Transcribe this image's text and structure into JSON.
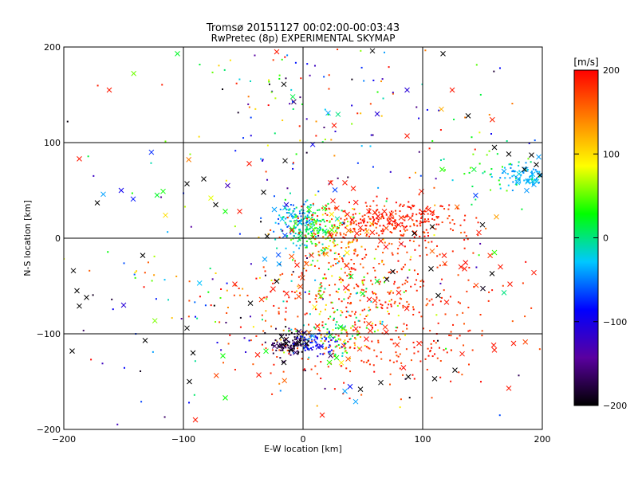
{
  "chart_data": {
    "type": "scatter",
    "title": "Tromsø 20151127 00:02:00-00:03:43",
    "subtitle": "RwPretec (8p) EXPERIMENTAL SKYMAP",
    "xlabel": "E-W location [km]",
    "ylabel": "N-S location [km]",
    "xlim": [
      -200,
      200
    ],
    "ylim": [
      -200,
      200
    ],
    "xticks": [
      -200,
      -100,
      0,
      100,
      200
    ],
    "yticks": [
      -200,
      -100,
      0,
      100,
      200
    ],
    "xtick_labels": [
      "−200",
      "−100",
      "0",
      "100",
      "200"
    ],
    "ytick_labels": [
      "−200",
      "−100",
      "0",
      "100",
      "200"
    ],
    "grid": true,
    "colorbar": {
      "label": "[m/s]",
      "range": [
        -200,
        200
      ],
      "ticks": [
        200,
        100,
        0,
        -100,
        -200
      ],
      "tick_labels": [
        "200",
        "100",
        "0",
        "−100",
        "−200"
      ],
      "colormap": [
        "#000000",
        "#5a00a0",
        "#0000ff",
        "#00c8ff",
        "#00ff00",
        "#ffff00",
        "#ff8000",
        "#ff0000"
      ]
    },
    "markers": {
      "x": "cross markers",
      "dot": "small dot markers"
    },
    "points": [
      {
        "x": -162,
        "y": 155,
        "v": 190,
        "m": "x"
      },
      {
        "x": -187,
        "y": 83,
        "v": 190,
        "m": "x"
      },
      {
        "x": -167,
        "y": 46,
        "v": -40,
        "m": "x"
      },
      {
        "x": -152,
        "y": 50,
        "v": -95,
        "m": "x"
      },
      {
        "x": -142,
        "y": 41,
        "v": -80,
        "m": "x"
      },
      {
        "x": -172,
        "y": 37,
        "v": -200,
        "m": "x"
      },
      {
        "x": -122,
        "y": 45,
        "v": 20,
        "m": "x"
      },
      {
        "x": -117,
        "y": 49,
        "v": 30,
        "m": "x"
      },
      {
        "x": -115,
        "y": 24,
        "v": 100,
        "m": "x"
      },
      {
        "x": -134,
        "y": -18,
        "v": -200,
        "m": "x"
      },
      {
        "x": -192,
        "y": -34,
        "v": -200,
        "m": "x"
      },
      {
        "x": -189,
        "y": -55,
        "v": -200,
        "m": "x"
      },
      {
        "x": -181,
        "y": -62,
        "v": -200,
        "m": "x"
      },
      {
        "x": -187,
        "y": -71,
        "v": -200,
        "m": "x"
      },
      {
        "x": -150,
        "y": -70,
        "v": -110,
        "m": "x"
      },
      {
        "x": -132,
        "y": -107,
        "v": -200,
        "m": "x"
      },
      {
        "x": -193,
        "y": -118,
        "v": -200,
        "m": "x"
      },
      {
        "x": -97,
        "y": -94,
        "v": -200,
        "m": "x"
      },
      {
        "x": -92,
        "y": -120,
        "v": -200,
        "m": "x"
      },
      {
        "x": -95,
        "y": -150,
        "v": -200,
        "m": "x"
      },
      {
        "x": -90,
        "y": -190,
        "v": 190,
        "m": "x"
      },
      {
        "x": -105,
        "y": 193,
        "v": 20,
        "m": "x"
      },
      {
        "x": -97,
        "y": 57,
        "v": -200,
        "m": "x"
      },
      {
        "x": -83,
        "y": 62,
        "v": -200,
        "m": "x"
      },
      {
        "x": -77,
        "y": 42,
        "v": 80,
        "m": "x"
      },
      {
        "x": -73,
        "y": 35,
        "v": -200,
        "m": "x"
      },
      {
        "x": -65,
        "y": 28,
        "v": 30,
        "m": "x"
      },
      {
        "x": -53,
        "y": 28,
        "v": 190,
        "m": "x"
      },
      {
        "x": -44,
        "y": -68,
        "v": -200,
        "m": "x"
      },
      {
        "x": -57,
        "y": -48,
        "v": 190,
        "m": "x"
      },
      {
        "x": -67,
        "y": -123,
        "v": 30,
        "m": "x"
      },
      {
        "x": -65,
        "y": -167,
        "v": 30,
        "m": "x"
      },
      {
        "x": -38,
        "y": -122,
        "v": 190,
        "m": "x"
      },
      {
        "x": -37,
        "y": -143,
        "v": 190,
        "m": "x"
      },
      {
        "x": -30,
        "y": 2,
        "v": -200,
        "m": "x"
      },
      {
        "x": -25,
        "y": -53,
        "v": 190,
        "m": "x"
      },
      {
        "x": -22,
        "y": -45,
        "v": -200,
        "m": "x"
      },
      {
        "x": -15,
        "y": 81,
        "v": -200,
        "m": "x"
      },
      {
        "x": -33,
        "y": 48,
        "v": -200,
        "m": "x"
      },
      {
        "x": -45,
        "y": 78,
        "v": 190,
        "m": "x"
      },
      {
        "x": -22,
        "y": 195,
        "v": 190,
        "m": "x"
      },
      {
        "x": -16,
        "y": 161,
        "v": -200,
        "m": "x"
      },
      {
        "x": 58,
        "y": 196,
        "v": -200,
        "m": "x"
      },
      {
        "x": 117,
        "y": 193,
        "v": -200,
        "m": "x"
      },
      {
        "x": 87,
        "y": 155,
        "v": -110,
        "m": "x"
      },
      {
        "x": 62,
        "y": 130,
        "v": -110,
        "m": "x"
      },
      {
        "x": 21,
        "y": 131,
        "v": -40,
        "m": "x"
      },
      {
        "x": 26,
        "y": 118,
        "v": 190,
        "m": "x"
      },
      {
        "x": 87,
        "y": 107,
        "v": 190,
        "m": "x"
      },
      {
        "x": 138,
        "y": 128,
        "v": -200,
        "m": "x"
      },
      {
        "x": 160,
        "y": 95,
        "v": -200,
        "m": "x"
      },
      {
        "x": 172,
        "y": 88,
        "v": -200,
        "m": "x"
      },
      {
        "x": 191,
        "y": 87,
        "v": -200,
        "m": "x"
      },
      {
        "x": 185,
        "y": 72,
        "v": -200,
        "m": "x"
      },
      {
        "x": 195,
        "y": 77,
        "v": -200,
        "m": "x"
      },
      {
        "x": 198,
        "y": 66,
        "v": -200,
        "m": "x"
      },
      {
        "x": 180,
        "y": 62,
        "v": -40,
        "m": "x"
      },
      {
        "x": 188,
        "y": 60,
        "v": -40,
        "m": "x"
      },
      {
        "x": 193,
        "y": 56,
        "v": -40,
        "m": "x"
      },
      {
        "x": 168,
        "y": 70,
        "v": -40,
        "m": "x"
      },
      {
        "x": 197,
        "y": 85,
        "v": -40,
        "m": "x"
      },
      {
        "x": 23,
        "y": 58,
        "v": 190,
        "m": "x"
      },
      {
        "x": 35,
        "y": 58,
        "v": 190,
        "m": "x"
      },
      {
        "x": 42,
        "y": 52,
        "v": 190,
        "m": "x"
      },
      {
        "x": 25,
        "y": 39,
        "v": 190,
        "m": "x"
      },
      {
        "x": 99,
        "y": 49,
        "v": 190,
        "m": "x"
      },
      {
        "x": 150,
        "y": 14,
        "v": -200,
        "m": "x"
      },
      {
        "x": 147,
        "y": 6,
        "v": 190,
        "m": "x"
      },
      {
        "x": 108,
        "y": 12,
        "v": -200,
        "m": "x"
      },
      {
        "x": 93,
        "y": 5,
        "v": -200,
        "m": "x"
      },
      {
        "x": 118,
        "y": -18,
        "v": 190,
        "m": "x"
      },
      {
        "x": 132,
        "y": -30,
        "v": 190,
        "m": "x"
      },
      {
        "x": 160,
        "y": -15,
        "v": 40,
        "m": "x"
      },
      {
        "x": 165,
        "y": -30,
        "v": 190,
        "m": "x"
      },
      {
        "x": 158,
        "y": -37,
        "v": -200,
        "m": "x"
      },
      {
        "x": 173,
        "y": -48,
        "v": 190,
        "m": "x"
      },
      {
        "x": 168,
        "y": -57,
        "v": 0,
        "m": "x"
      },
      {
        "x": 193,
        "y": -36,
        "v": 190,
        "m": "x"
      },
      {
        "x": 107,
        "y": -32,
        "v": -200,
        "m": "x"
      },
      {
        "x": 113,
        "y": -60,
        "v": -200,
        "m": "x"
      },
      {
        "x": 120,
        "y": -67,
        "v": 190,
        "m": "x"
      },
      {
        "x": 135,
        "y": -32,
        "v": 190,
        "m": "x"
      },
      {
        "x": 75,
        "y": -35,
        "v": -200,
        "m": "x"
      },
      {
        "x": 70,
        "y": -43,
        "v": -200,
        "m": "x"
      },
      {
        "x": 50,
        "y": -58,
        "v": 20,
        "m": "x"
      },
      {
        "x": 62,
        "y": -45,
        "v": 20,
        "m": "x"
      },
      {
        "x": 40,
        "y": -40,
        "v": 20,
        "m": "x"
      },
      {
        "x": 80,
        "y": -57,
        "v": 190,
        "m": "x"
      },
      {
        "x": 97,
        "y": -110,
        "v": 190,
        "m": "x"
      },
      {
        "x": 133,
        "y": -121,
        "v": 190,
        "m": "x"
      },
      {
        "x": 160,
        "y": -117,
        "v": 190,
        "m": "x"
      },
      {
        "x": 176,
        "y": -110,
        "v": 190,
        "m": "x"
      },
      {
        "x": 172,
        "y": -157,
        "v": 190,
        "m": "x"
      },
      {
        "x": 127,
        "y": -138,
        "v": -200,
        "m": "x"
      },
      {
        "x": 110,
        "y": -147,
        "v": -200,
        "m": "x"
      },
      {
        "x": 88,
        "y": -145,
        "v": -200,
        "m": "x"
      },
      {
        "x": 65,
        "y": -151,
        "v": -200,
        "m": "x"
      },
      {
        "x": 48,
        "y": -158,
        "v": -200,
        "m": "x"
      },
      {
        "x": 44,
        "y": -171,
        "v": -40,
        "m": "x"
      },
      {
        "x": 35,
        "y": -160,
        "v": -40,
        "m": "x"
      },
      {
        "x": 16,
        "y": -185,
        "v": 190,
        "m": "x"
      },
      {
        "x": 12,
        "y": -92,
        "v": 190,
        "m": "x"
      },
      {
        "x": 8,
        "y": -102,
        "v": -40,
        "m": "x"
      },
      {
        "x": 15,
        "y": -113,
        "v": -110,
        "m": "x"
      },
      {
        "x": -18,
        "y": -103,
        "v": -200,
        "m": "x"
      },
      {
        "x": -14,
        "y": -110,
        "v": -200,
        "m": "x"
      },
      {
        "x": -10,
        "y": -117,
        "v": -200,
        "m": "x"
      },
      {
        "x": -3,
        "y": -109,
        "v": -200,
        "m": "x"
      },
      {
        "x": 3,
        "y": -110,
        "v": -200,
        "m": "x"
      },
      {
        "x": -16,
        "y": -130,
        "v": -200,
        "m": "x"
      },
      {
        "x": 22,
        "y": -130,
        "v": 40,
        "m": "x"
      },
      {
        "x": 28,
        "y": -125,
        "v": 30,
        "m": "x"
      },
      {
        "x": -24,
        "y": 30,
        "v": -40,
        "m": "x"
      },
      {
        "x": -14,
        "y": 35,
        "v": -110,
        "m": "x"
      },
      {
        "x": -10,
        "y": 25,
        "v": -40,
        "m": "x"
      },
      {
        "x": 5,
        "y": 30,
        "v": 40,
        "m": "x"
      },
      {
        "x": 37,
        "y": 25,
        "v": 190,
        "m": "x"
      },
      {
        "x": 55,
        "y": 28,
        "v": 190,
        "m": "x"
      },
      {
        "x": 68,
        "y": 28,
        "v": 190,
        "m": "x"
      },
      {
        "x": 100,
        "y": 27,
        "v": 190,
        "m": "x"
      },
      {
        "x": 108,
        "y": 27,
        "v": 190,
        "m": "x"
      },
      {
        "x": 38,
        "y": 8,
        "v": 150,
        "m": "x"
      },
      {
        "x": 45,
        "y": 5,
        "v": 190,
        "m": "x"
      },
      {
        "x": 65,
        "y": -3,
        "v": 190,
        "m": "x"
      },
      {
        "x": 82,
        "y": -6,
        "v": 190,
        "m": "x"
      },
      {
        "x": -32,
        "y": -22,
        "v": -40,
        "m": "x"
      },
      {
        "x": -20,
        "y": -27,
        "v": -40,
        "m": "x"
      },
      {
        "x": -5,
        "y": -28,
        "v": 190,
        "m": "x"
      }
    ],
    "clusters": [
      {
        "cx": -5,
        "cy": 17,
        "sx": 9,
        "sy": 12,
        "n": 130,
        "vmin": -70,
        "vmax": 10
      },
      {
        "cx": 12,
        "cy": 8,
        "sx": 10,
        "sy": 12,
        "n": 110,
        "vmin": -10,
        "vmax": 60
      },
      {
        "cx": 28,
        "cy": 4,
        "sx": 12,
        "sy": 14,
        "n": 80,
        "vmin": 40,
        "vmax": 200
      },
      {
        "cx": 70,
        "cy": 20,
        "sx": 32,
        "sy": 10,
        "n": 240,
        "vmin": 170,
        "vmax": 200
      },
      {
        "cx": 60,
        "cy": 0,
        "sx": 45,
        "sy": 20,
        "n": 90,
        "vmin": 150,
        "vmax": 200
      },
      {
        "cx": 55,
        "cy": -55,
        "sx": 50,
        "sy": 25,
        "n": 260,
        "vmin": 160,
        "vmax": 200
      },
      {
        "cx": 55,
        "cy": -110,
        "sx": 50,
        "sy": 22,
        "n": 220,
        "vmin": 160,
        "vmax": 200
      },
      {
        "cx": 30,
        "cy": -60,
        "sx": 28,
        "sy": 30,
        "n": 90,
        "vmin": -40,
        "vmax": 130
      },
      {
        "cx": -10,
        "cy": -110,
        "sx": 9,
        "sy": 7,
        "n": 110,
        "vmin": -200,
        "vmax": -150
      },
      {
        "cx": 10,
        "cy": -110,
        "sx": 9,
        "sy": 6,
        "n": 70,
        "vmin": -120,
        "vmax": -60
      },
      {
        "cx": 30,
        "cy": -105,
        "sx": 12,
        "sy": 10,
        "n": 60,
        "vmin": -20,
        "vmax": 120
      },
      {
        "cx": 185,
        "cy": 65,
        "sx": 12,
        "sy": 7,
        "n": 80,
        "vmin": -50,
        "vmax": -20
      },
      {
        "cx": 160,
        "cy": 70,
        "sx": 25,
        "sy": 15,
        "n": 35,
        "vmin": 0,
        "vmax": 60
      },
      {
        "cx": 5,
        "cy": 150,
        "sx": 40,
        "sy": 40,
        "n": 80,
        "vmin": -200,
        "vmax": 200
      },
      {
        "cx": -60,
        "cy": -40,
        "sx": 60,
        "sy": 90,
        "n": 120,
        "vmin": -200,
        "vmax": 200
      },
      {
        "cx": 100,
        "cy": 100,
        "sx": 70,
        "sy": 60,
        "n": 70,
        "vmin": -200,
        "vmax": 200
      },
      {
        "cx": 0,
        "cy": 0,
        "sx": 150,
        "sy": 150,
        "n": 110,
        "vmin": -200,
        "vmax": 200
      }
    ]
  }
}
